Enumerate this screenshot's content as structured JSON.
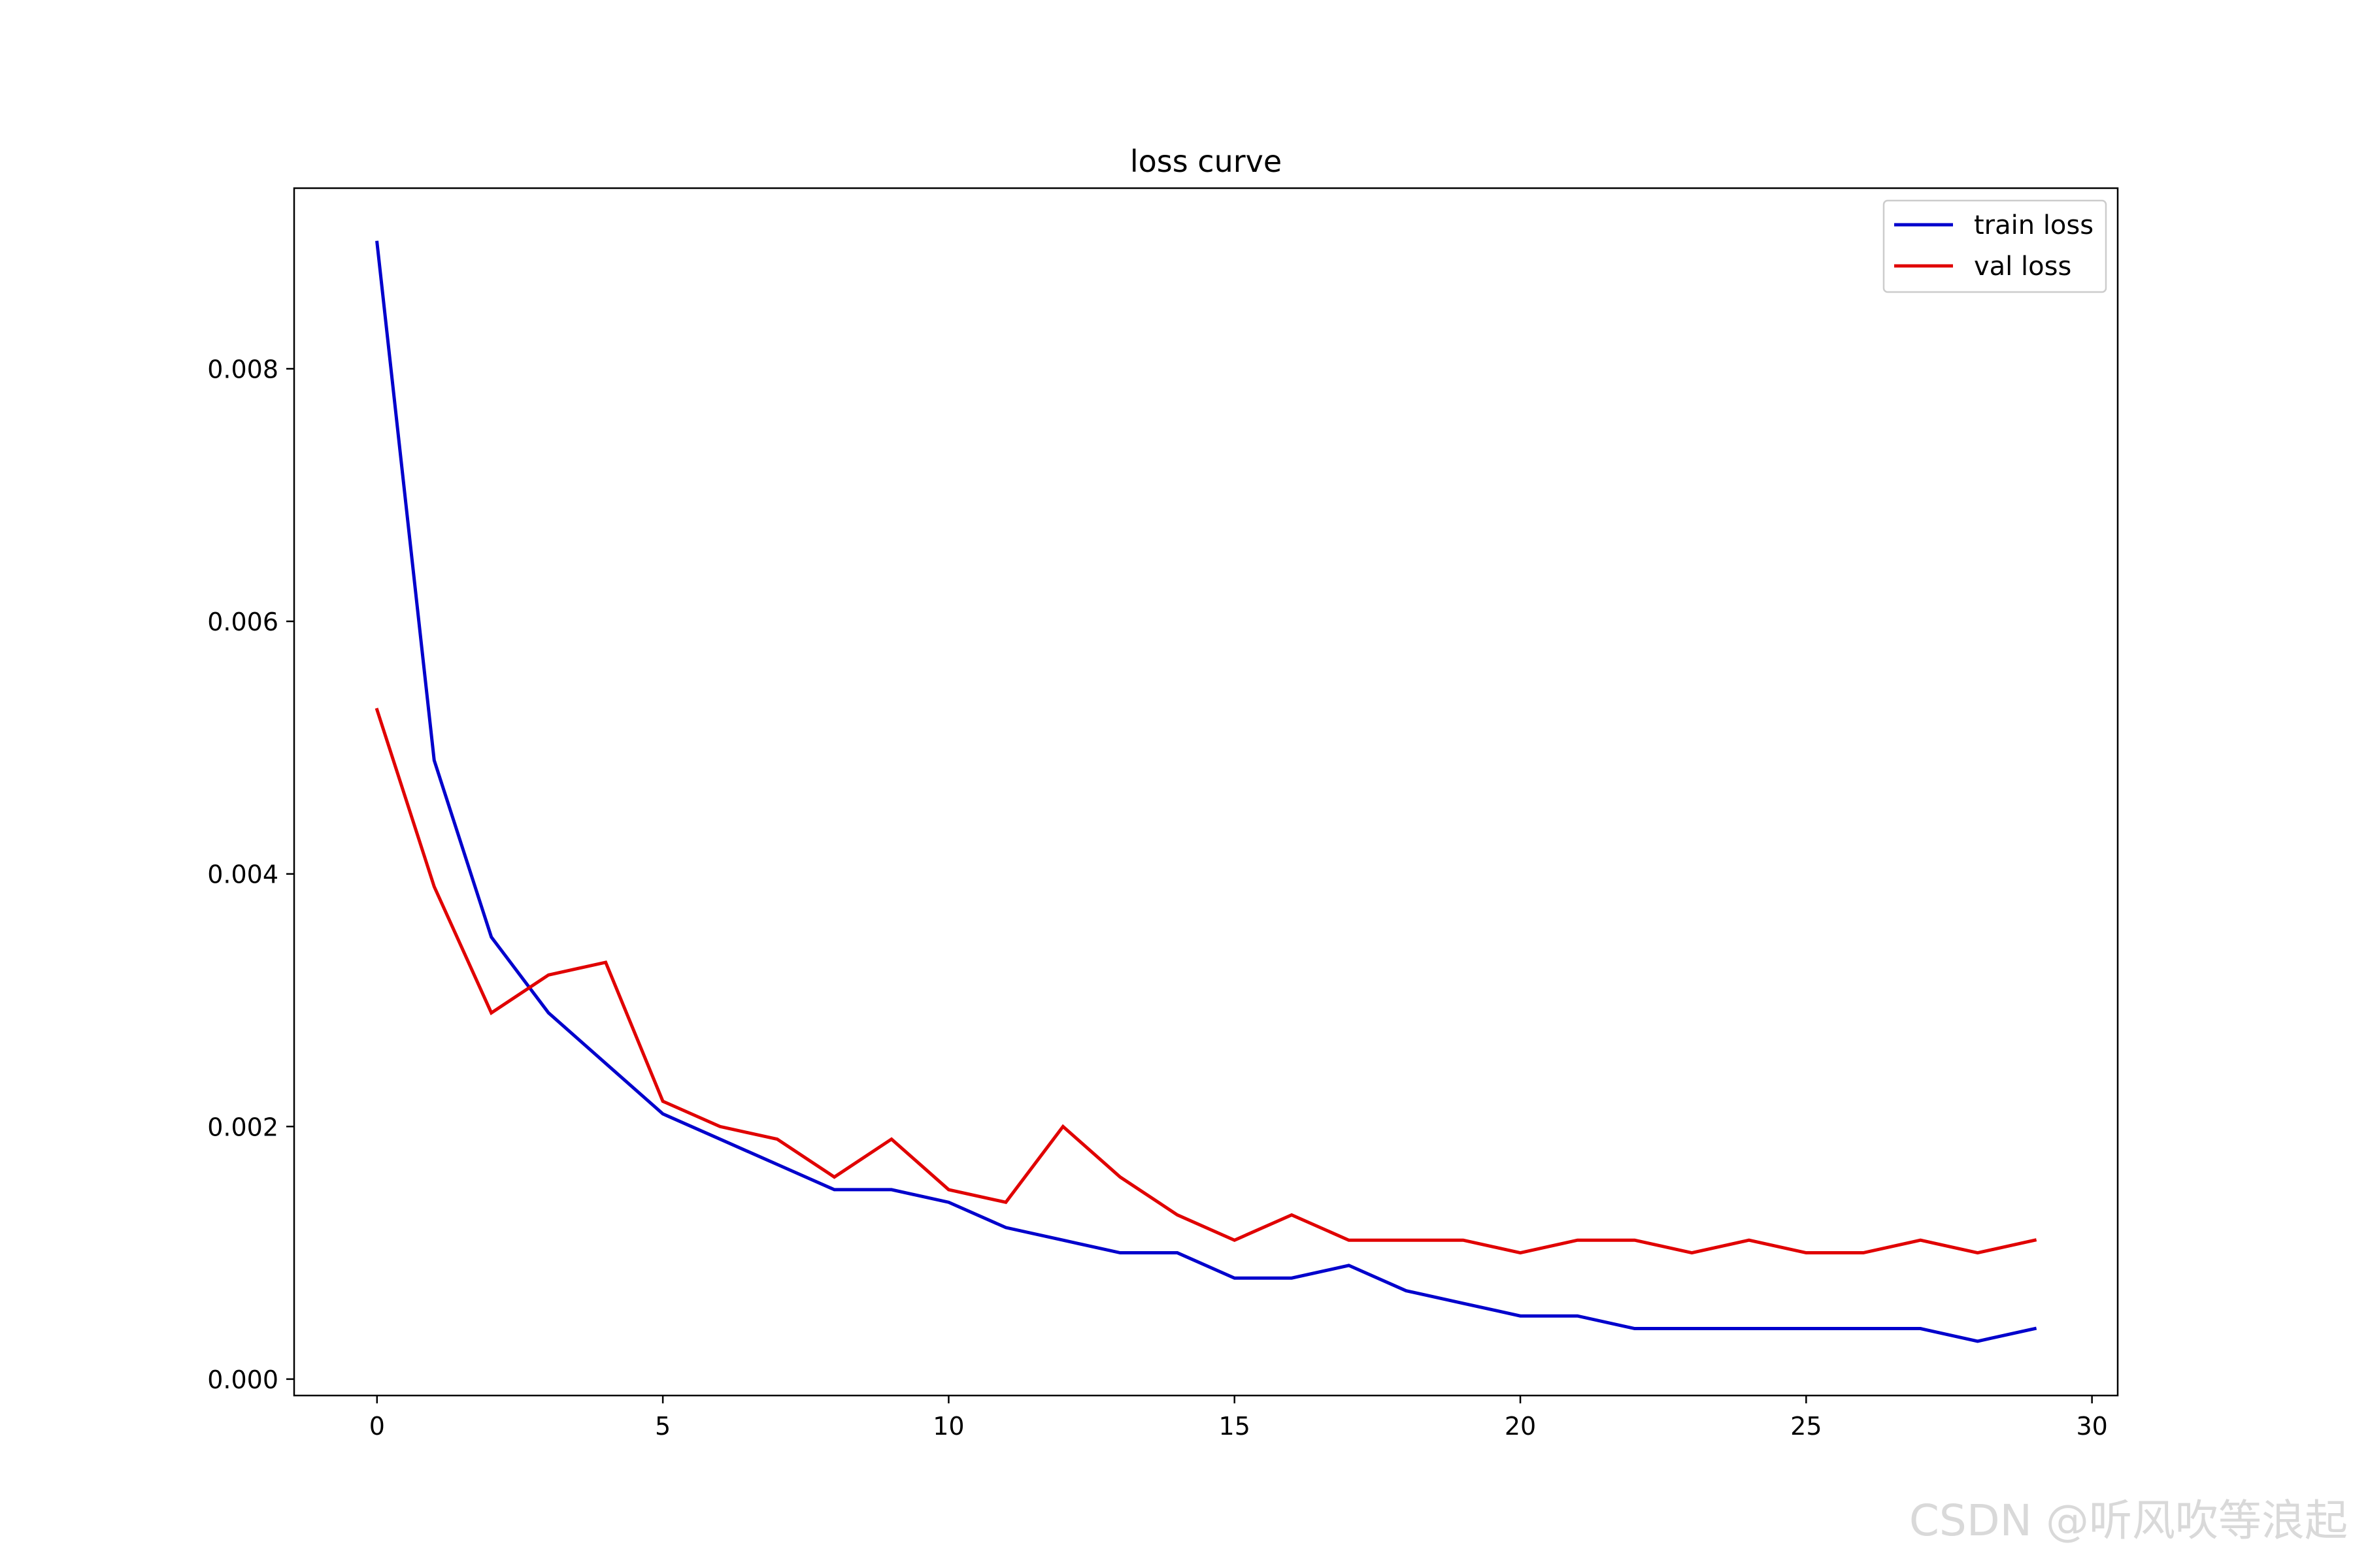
{
  "chart_data": {
    "type": "line",
    "title": "loss curve",
    "xlabel": "",
    "ylabel": "",
    "xlim": [
      -1.45,
      30.45
    ],
    "ylim": [
      -0.00013,
      0.00943
    ],
    "xticks": [
      0,
      5,
      10,
      15,
      20,
      25,
      30
    ],
    "yticks": [
      0.0,
      0.002,
      0.004,
      0.006,
      0.008
    ],
    "ytick_labels": [
      "0.000",
      "0.002",
      "0.004",
      "0.006",
      "0.008"
    ],
    "grid": false,
    "legend_position": "top-right",
    "x": [
      0,
      1,
      2,
      3,
      4,
      5,
      6,
      7,
      8,
      9,
      10,
      11,
      12,
      13,
      14,
      15,
      16,
      17,
      18,
      19,
      20,
      21,
      22,
      23,
      24,
      25,
      26,
      27,
      28,
      29
    ],
    "series": [
      {
        "name": "train loss",
        "color": "#0000cc",
        "values": [
          0.009,
          0.0049,
          0.0035,
          0.0029,
          0.0025,
          0.0021,
          0.0019,
          0.0017,
          0.0015,
          0.0015,
          0.0014,
          0.0012,
          0.0011,
          0.001,
          0.001,
          0.0008,
          0.0008,
          0.0009,
          0.0007,
          0.0006,
          0.0005,
          0.0005,
          0.0004,
          0.0004,
          0.0004,
          0.0004,
          0.0004,
          0.0004,
          0.0003,
          0.0004
        ]
      },
      {
        "name": "val loss",
        "color": "#e00000",
        "values": [
          0.0053,
          0.0039,
          0.0029,
          0.0032,
          0.0033,
          0.0022,
          0.002,
          0.0019,
          0.0016,
          0.0019,
          0.0015,
          0.0014,
          0.002,
          0.0016,
          0.0013,
          0.0011,
          0.0013,
          0.0011,
          0.0011,
          0.0011,
          0.001,
          0.0011,
          0.0011,
          0.001,
          0.0011,
          0.001,
          0.001,
          0.0011,
          0.001,
          0.0011
        ]
      }
    ]
  },
  "watermark": "CSDN @听风吹等浪起"
}
